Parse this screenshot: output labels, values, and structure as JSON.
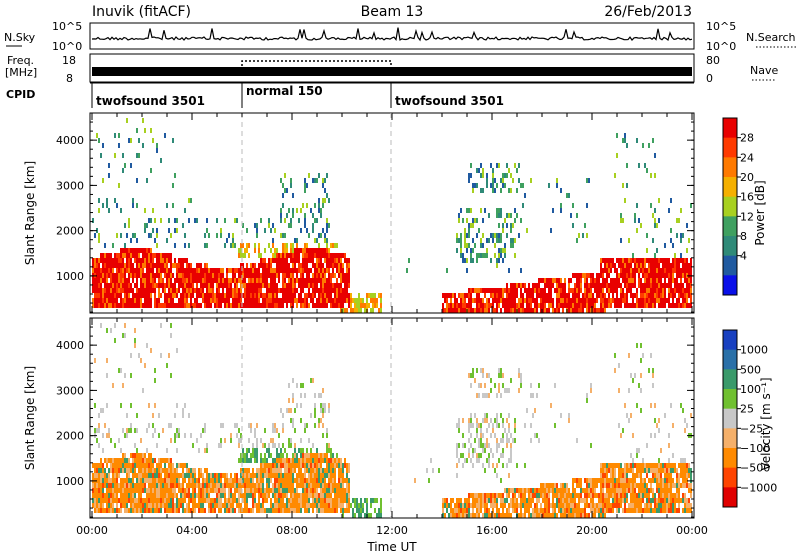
{
  "header": {
    "title": "Inuvik (fitACF)",
    "beam": "Beam 13",
    "date": "26/Feb/2013"
  },
  "top_panels": {
    "nsky_label": "N.Sky",
    "nsky_ticks": [
      "10^5",
      "10^0"
    ],
    "nsearch_ticks": [
      "10^5",
      "10^0"
    ],
    "nsearch_label": "N.Search",
    "freq_label_line1": "Freq.",
    "freq_label_line2": "[MHz]",
    "freq_ticks": [
      "18",
      "8"
    ],
    "nave_ticks": [
      "80",
      "0"
    ],
    "nave_label": "Nave",
    "cpid_label": "CPID",
    "cpid_segments": [
      {
        "label": "twofsound 3501",
        "start_h": 0,
        "end_h": 6
      },
      {
        "label": "normal 150",
        "start_h": 6,
        "end_h": 12
      },
      {
        "label": "twofsound 3501",
        "start_h": 12,
        "end_h": 24
      }
    ]
  },
  "chart_data": [
    {
      "type": "heatmap",
      "name": "power",
      "ylabel": "Slant Range [km]",
      "xlim_h": [
        0,
        24
      ],
      "ylim": [
        180,
        4600
      ],
      "yticks": [
        1000,
        2000,
        3000,
        4000
      ],
      "colorbar": {
        "label": "Power [dB]",
        "ticks": [
          "28",
          "24",
          "20",
          "16",
          "12",
          "8",
          "4"
        ],
        "colors": [
          "#e80000",
          "#ff3a00",
          "#ff7a00",
          "#f5b000",
          "#a8d020",
          "#3fa060",
          "#2f8a78",
          "#205aa0",
          "#0a10e8"
        ]
      }
    },
    {
      "type": "heatmap",
      "name": "velocity",
      "ylabel": "Slant Range [km]",
      "xlim_h": [
        0,
        24
      ],
      "ylim": [
        180,
        4600
      ],
      "yticks": [
        1000,
        2000,
        3000,
        4000
      ],
      "xticks": [
        "00:00",
        "04:00",
        "08:00",
        "12:00",
        "16:00",
        "20:00",
        "00:00"
      ],
      "xlabel": "Time UT",
      "colorbar": {
        "label": "Velocity [m s⁻¹]",
        "ticks": [
          "1000",
          "500",
          "100",
          "25",
          "−25",
          "−100",
          "−500",
          "−1000"
        ],
        "colors": [
          "#1840c0",
          "#2a70a8",
          "#3a9a6a",
          "#70c030",
          "#c8c8c8",
          "#f5b06a",
          "#ff8a00",
          "#ff4400",
          "#e00000"
        ]
      }
    }
  ]
}
